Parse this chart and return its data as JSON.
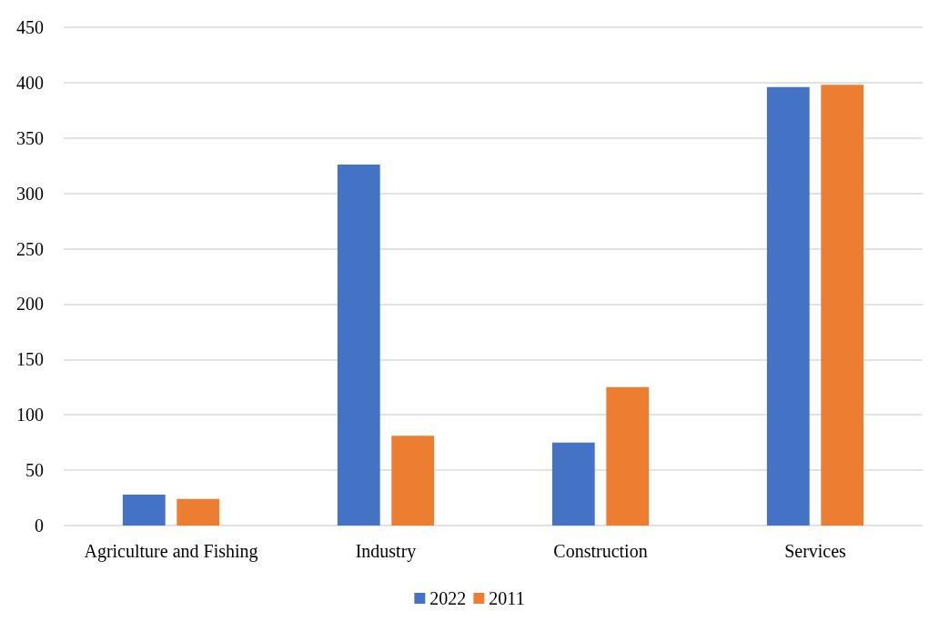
{
  "chart_data": {
    "type": "bar",
    "categories": [
      "Agriculture and Fishing",
      "Industry",
      "Construction",
      "Services"
    ],
    "series": [
      {
        "name": "2022",
        "color": "#4472c4",
        "values": [
          28,
          326,
          75,
          396
        ]
      },
      {
        "name": "2011",
        "color": "#ed7d31",
        "values": [
          24,
          81,
          125,
          398
        ]
      }
    ],
    "ylim": [
      0,
      450
    ],
    "yticks": [
      0,
      50,
      100,
      150,
      200,
      250,
      300,
      350,
      400,
      450
    ],
    "grid": "y",
    "legend": "bottom"
  }
}
